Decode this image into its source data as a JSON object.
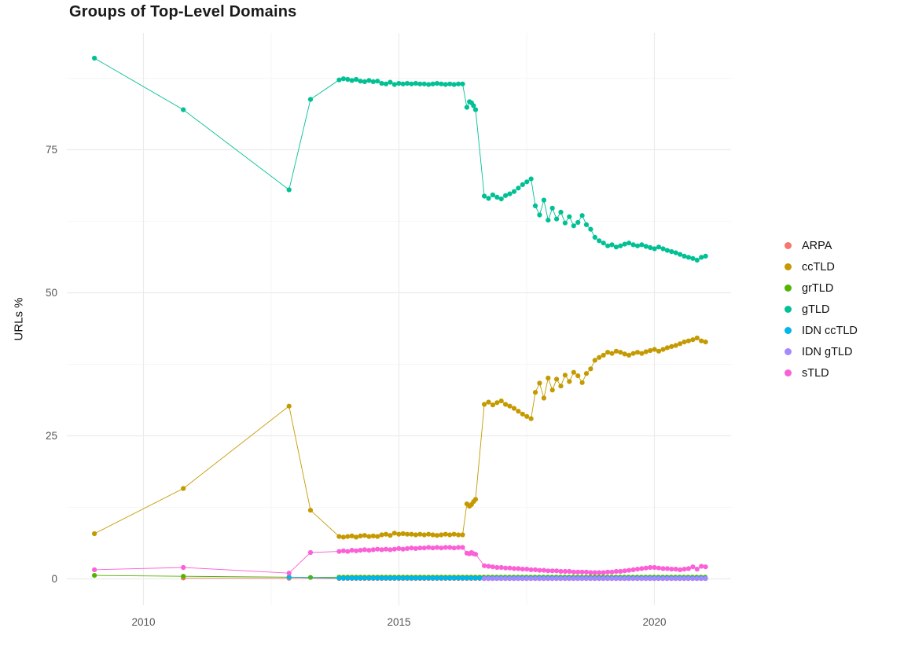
{
  "chart_data": {
    "type": "scatter",
    "title": "Groups of Top-Level Domains",
    "xlabel": "",
    "ylabel": "URLs %",
    "xlim": [
      2008.5,
      2021.5
    ],
    "ylim": [
      -4.6,
      95.4
    ],
    "x_ticks": {
      "values": [
        2010,
        2015,
        2020
      ],
      "labels": [
        "2010",
        "2015",
        "2020"
      ]
    },
    "y_ticks": {
      "values": [
        0,
        25,
        50,
        75
      ],
      "labels": [
        "0",
        "25",
        "50",
        "75"
      ]
    },
    "grid": {
      "x_minor": [
        2012.5,
        2017.5
      ],
      "y_minor": [
        12.5,
        37.5,
        62.5,
        87.5
      ]
    },
    "legend_position": "right",
    "series": [
      {
        "name": "ARPA",
        "color": "#F8766D",
        "segments": [
          {
            "points": [
              [
                2010.78,
                0.15
              ],
              [
                2012.85,
                0.1
              ]
            ]
          },
          {
            "x_start": 2013.83,
            "step": 0.0833,
            "count": 87,
            "y_const": 0.07
          }
        ]
      },
      {
        "name": "ccTLD",
        "color": "#C49A00",
        "segments": [
          {
            "points": [
              [
                2009.04,
                7.9
              ],
              [
                2010.78,
                15.8
              ],
              [
                2012.85,
                30.2
              ],
              [
                2013.27,
                12.0
              ]
            ]
          },
          {
            "x_start": 2013.83,
            "step": 0.0833,
            "y": [
              7.4,
              7.3,
              7.4,
              7.5,
              7.3,
              7.5,
              7.6,
              7.4,
              7.5,
              7.4,
              7.7,
              7.8,
              7.6,
              8.0,
              7.8,
              7.9,
              7.8,
              7.8,
              7.7,
              7.8,
              7.7,
              7.8,
              7.7,
              7.6,
              7.7,
              7.8,
              7.7,
              7.8,
              7.7,
              7.7
            ]
          },
          {
            "points": [
              [
                2016.33,
                13.1
              ],
              [
                2016.38,
                12.7
              ],
              [
                2016.42,
                13.0
              ],
              [
                2016.46,
                13.5
              ],
              [
                2016.5,
                13.9
              ]
            ]
          },
          {
            "x_start": 2016.67,
            "step": 0.0833,
            "y": [
              30.5,
              30.9,
              30.4,
              30.8,
              31.1,
              30.5,
              30.2,
              29.8,
              29.3,
              28.8,
              28.4,
              28.0,
              32.6,
              34.2,
              31.6,
              35.1,
              33.0,
              34.9,
              33.7,
              35.6,
              34.5,
              36.1,
              35.5,
              34.3,
              35.9,
              36.7,
              38.2,
              38.7,
              39.1,
              39.6,
              39.4,
              39.8,
              39.6,
              39.3,
              39.1,
              39.4,
              39.6,
              39.4,
              39.7,
              39.9,
              40.1,
              39.8,
              40.1,
              40.4,
              40.6,
              40.8,
              41.1,
              41.4,
              41.6,
              41.8,
              42.1,
              41.6,
              41.4
            ]
          }
        ]
      },
      {
        "name": "grTLD",
        "color": "#53B400",
        "segments": [
          {
            "points": [
              [
                2009.04,
                0.6
              ],
              [
                2010.78,
                0.45
              ],
              [
                2012.85,
                0.3
              ],
              [
                2013.27,
                0.25
              ]
            ]
          },
          {
            "x_start": 2013.83,
            "step": 0.0833,
            "count": 87,
            "y_const": 0.3
          }
        ]
      },
      {
        "name": "gTLD",
        "color": "#00C094",
        "segments": [
          {
            "points": [
              [
                2009.04,
                91.0
              ],
              [
                2010.78,
                82.0
              ],
              [
                2012.85,
                68.0
              ],
              [
                2013.27,
                83.8
              ]
            ]
          },
          {
            "x_start": 2013.83,
            "step": 0.0833,
            "y": [
              87.2,
              87.4,
              87.3,
              87.1,
              87.3,
              87.0,
              86.9,
              87.1,
              86.9,
              87.0,
              86.6,
              86.5,
              86.8,
              86.4,
              86.6,
              86.5,
              86.6,
              86.5,
              86.6,
              86.5,
              86.5,
              86.4,
              86.5,
              86.6,
              86.5,
              86.4,
              86.5,
              86.4,
              86.5,
              86.5
            ]
          },
          {
            "points": [
              [
                2016.33,
                82.4
              ],
              [
                2016.38,
                83.4
              ],
              [
                2016.42,
                83.2
              ],
              [
                2016.46,
                82.7
              ],
              [
                2016.5,
                82.0
              ]
            ]
          },
          {
            "x_start": 2016.67,
            "step": 0.0833,
            "y": [
              66.9,
              66.5,
              67.1,
              66.7,
              66.4,
              67.0,
              67.3,
              67.7,
              68.3,
              68.9,
              69.4,
              69.9,
              65.2,
              63.6,
              66.2,
              62.7,
              64.8,
              62.9,
              64.1,
              62.2,
              63.3,
              61.7,
              62.3,
              63.5,
              61.9,
              61.1,
              59.7,
              59.1,
              58.7,
              58.2,
              58.4,
              58.0,
              58.2,
              58.5,
              58.7,
              58.4,
              58.2,
              58.4,
              58.1,
              57.9,
              57.7,
              58.0,
              57.7,
              57.4,
              57.2,
              57.0,
              56.7,
              56.4,
              56.2,
              56.0,
              55.7,
              56.2,
              56.4
            ]
          }
        ]
      },
      {
        "name": "IDN ccTLD",
        "color": "#00B6EB",
        "segments": [
          {
            "points": [
              [
                2012.85,
                0.3
              ]
            ]
          },
          {
            "x_start": 2013.83,
            "step": 0.0833,
            "count": 87,
            "y_const": 0.12
          }
        ]
      },
      {
        "name": "IDN gTLD",
        "color": "#A58AFF",
        "segments": [
          {
            "x_start": 2016.67,
            "step": 0.0833,
            "count": 53,
            "y_const": 0.05
          }
        ]
      },
      {
        "name": "sTLD",
        "color": "#FB61D7",
        "segments": [
          {
            "points": [
              [
                2009.04,
                1.6
              ],
              [
                2010.78,
                2.0
              ],
              [
                2012.85,
                1.0
              ],
              [
                2013.27,
                4.6
              ]
            ]
          },
          {
            "x_start": 2013.83,
            "step": 0.0833,
            "y": [
              4.8,
              4.9,
              4.8,
              5.0,
              4.9,
              5.0,
              5.1,
              5.0,
              5.1,
              5.2,
              5.1,
              5.2,
              5.1,
              5.2,
              5.3,
              5.2,
              5.3,
              5.4,
              5.3,
              5.4,
              5.4,
              5.5,
              5.4,
              5.5,
              5.4,
              5.5,
              5.5,
              5.4,
              5.5,
              5.5
            ]
          },
          {
            "points": [
              [
                2016.33,
                4.5
              ],
              [
                2016.38,
                4.4
              ],
              [
                2016.42,
                4.6
              ],
              [
                2016.46,
                4.4
              ],
              [
                2016.5,
                4.3
              ]
            ]
          },
          {
            "x_start": 2016.67,
            "step": 0.0833,
            "y": [
              2.3,
              2.2,
              2.1,
              2.0,
              2.0,
              1.9,
              1.9,
              1.8,
              1.8,
              1.7,
              1.7,
              1.6,
              1.6,
              1.5,
              1.5,
              1.4,
              1.4,
              1.4,
              1.3,
              1.3,
              1.3,
              1.2,
              1.2,
              1.2,
              1.2,
              1.1,
              1.1,
              1.1,
              1.1,
              1.2,
              1.2,
              1.3,
              1.3,
              1.4,
              1.5,
              1.6,
              1.7,
              1.8,
              1.9,
              2.0,
              2.0,
              1.9,
              1.8,
              1.8,
              1.7,
              1.7,
              1.6,
              1.7,
              1.8,
              2.1,
              1.7,
              2.2,
              2.1
            ]
          }
        ]
      }
    ]
  }
}
